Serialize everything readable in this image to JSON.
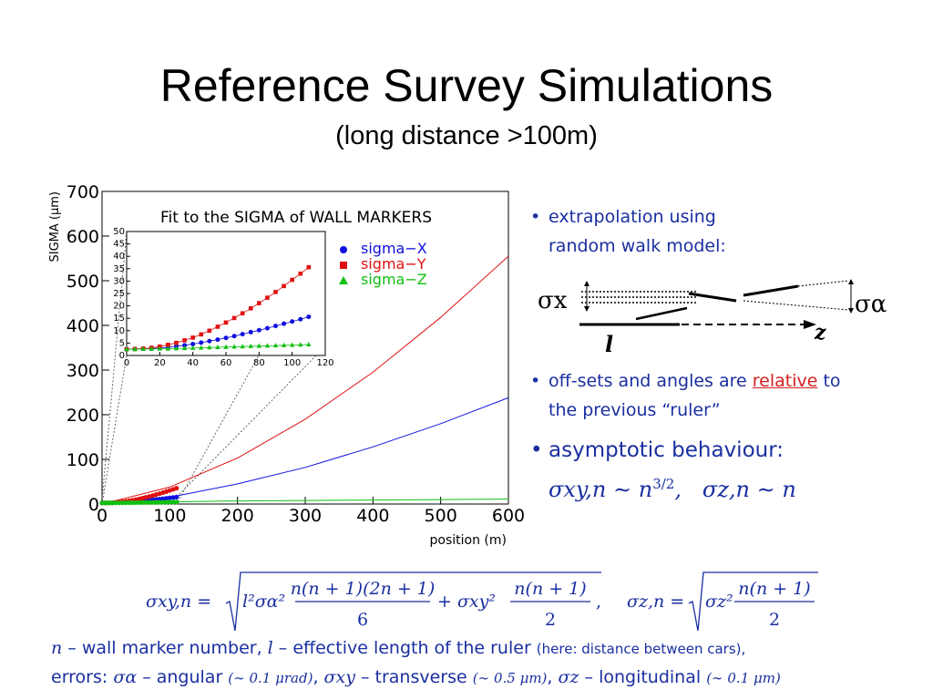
{
  "slide": {
    "title": "Reference Survey Simulations",
    "subtitle": "(long distance >100m)"
  },
  "bullets": {
    "b1_line1": "extrapolation using",
    "b1_line2": "random walk model:",
    "b2_line1a": "off-sets and angles are",
    "b2_rel": "relative",
    "b2_line1b": "to",
    "b2_line2": "the previous “ruler”",
    "b3": "asymptotic behaviour:",
    "asym_xy": "σxy,n ∼ n",
    "asym_exp": "3/2",
    "asym_z": "σz,n ∼ n"
  },
  "diagram": {
    "sigma_x": "σx",
    "sigma_alpha": "σα",
    "l_label": "l",
    "z_label": "z"
  },
  "formula": {
    "lhs1": "σxy,n =",
    "lhs2": "σz,n =",
    "t1": "l²σα²",
    "t1_num": "n(n + 1)(2n + 1)",
    "t1_den": "6",
    "plus": "+ σxy²",
    "t2_num": "n(n + 1)",
    "t2_den": "2",
    "t3": "σz²",
    "t3_num": "n(n + 1)",
    "t3_den": "2"
  },
  "footnote": {
    "line1_a": "n",
    "line1_b": " – wall marker number, ",
    "line1_c": "l",
    "line1_d": " – effective length of the ruler ",
    "line1_e": "(here: distance between cars),",
    "line2_a": "errors: ",
    "line2_b": "σα",
    "line2_c": " – angular ",
    "line2_d": "(∼ 0.1 μrad)",
    "line2_e": ", ",
    "line2_f": "σxy",
    "line2_g": " – transverse ",
    "line2_h": "(∼ 0.5 μm)",
    "line2_i": ", ",
    "line2_j": "σz",
    "line2_k": " – longitudinal ",
    "line2_l": "(∼ 0.1 μm)"
  },
  "colors": {
    "x": "#1010e0",
    "y": "#e01010",
    "z": "#10c010",
    "text_blue": "#1a2fa0"
  },
  "chart_data": [
    {
      "type": "line",
      "role": "main",
      "xlabel": "position (m)",
      "ylabel": "SIGMA (μm)",
      "xlim": [
        0,
        600
      ],
      "ylim": [
        0,
        700
      ],
      "xticks": [
        0,
        100,
        200,
        300,
        400,
        500,
        600
      ],
      "yticks": [
        0,
        100,
        200,
        300,
        400,
        500,
        600,
        700
      ],
      "series": [
        {
          "name": "sigma−X",
          "color": "#1010e0",
          "x": [
            0,
            100,
            200,
            300,
            400,
            500,
            600
          ],
          "values": [
            0,
            15,
            45,
            82,
            128,
            180,
            238
          ]
        },
        {
          "name": "sigma−Y",
          "color": "#e01010",
          "x": [
            0,
            100,
            200,
            300,
            400,
            500,
            600
          ],
          "values": [
            0,
            38,
            103,
            190,
            295,
            418,
            555
          ]
        },
        {
          "name": "sigma−Z",
          "color": "#10c010",
          "x": [
            0,
            100,
            200,
            300,
            400,
            500,
            600
          ],
          "values": [
            3,
            5,
            7,
            8,
            9,
            10,
            11
          ]
        }
      ]
    },
    {
      "type": "scatter",
      "role": "inset",
      "title": "Fit to the SIGMA of WALL MARKERS",
      "xlim": [
        0,
        120
      ],
      "ylim": [
        0,
        50
      ],
      "xticks": [
        0,
        20,
        40,
        60,
        80,
        100,
        120
      ],
      "yticks": [
        0,
        5,
        10,
        15,
        20,
        25,
        30,
        35,
        40,
        45,
        50
      ],
      "legend": "top-right",
      "x": [
        0,
        5,
        10,
        15,
        20,
        25,
        30,
        35,
        40,
        45,
        50,
        55,
        60,
        65,
        70,
        75,
        80,
        85,
        90,
        95,
        100,
        105,
        110
      ],
      "series": [
        {
          "name": "sigma−X",
          "color": "#1010e0",
          "marker": "circle",
          "values": [
            2.5,
            2.6,
            2.7,
            2.8,
            3.0,
            3.3,
            3.7,
            4.1,
            4.6,
            5.2,
            5.8,
            6.4,
            7.1,
            7.8,
            8.6,
            9.4,
            10.2,
            11.0,
            11.9,
            12.8,
            13.7,
            14.6,
            15.6
          ]
        },
        {
          "name": "sigma−Y",
          "color": "#e01010",
          "marker": "square",
          "values": [
            2.5,
            2.6,
            2.8,
            3.1,
            3.6,
            4.3,
            5.1,
            6.1,
            7.2,
            8.5,
            10.0,
            11.6,
            13.3,
            15.1,
            17.0,
            19.0,
            21.1,
            23.3,
            25.6,
            28.0,
            30.5,
            33.0,
            35.6
          ]
        },
        {
          "name": "sigma−Z",
          "color": "#10c010",
          "marker": "triangle",
          "values": [
            2.5,
            2.5,
            2.6,
            2.6,
            2.7,
            2.7,
            2.8,
            2.9,
            3.0,
            3.1,
            3.2,
            3.3,
            3.4,
            3.5,
            3.6,
            3.7,
            3.8,
            3.9,
            4.0,
            4.1,
            4.2,
            4.3,
            4.4
          ]
        }
      ]
    }
  ]
}
